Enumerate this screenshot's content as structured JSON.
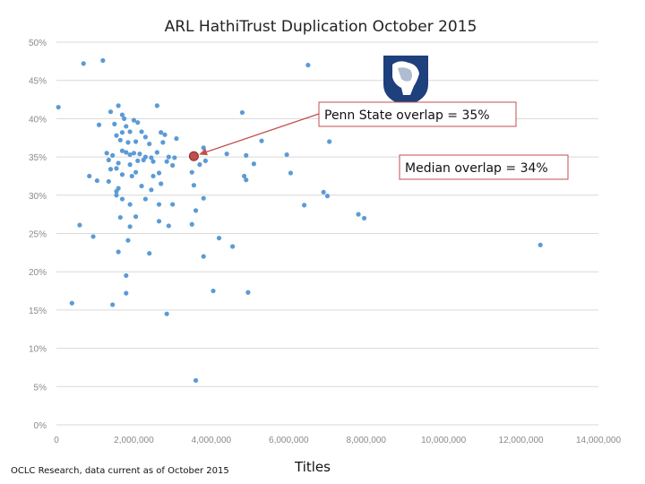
{
  "chart_data": {
    "type": "scatter",
    "title": "ARL HathiTrust Duplication October 2015",
    "xlabel": "Titles",
    "ylabel": "",
    "xlim": [
      0,
      14000000
    ],
    "ylim": [
      0,
      50
    ],
    "xticks": [
      "0",
      "2,000,000",
      "4,000,000",
      "6,000,000",
      "8,000,000",
      "10,000,000",
      "12,000,000",
      "14,000,000"
    ],
    "yticks": [
      "0%",
      "5%",
      "10%",
      "15%",
      "20%",
      "25%",
      "30%",
      "35%",
      "40%",
      "45%",
      "50%"
    ],
    "grid": "horizontal",
    "point_color": "#5b9bd5",
    "highlight_color": "#c0504d",
    "series": [
      {
        "points": [
          [
            50000,
            41.5
          ],
          [
            700000,
            47.2
          ],
          [
            1200000,
            47.6
          ],
          [
            6500000,
            47.0
          ],
          [
            2600000,
            41.7
          ],
          [
            4800000,
            40.8
          ],
          [
            1100000,
            39.2
          ],
          [
            1400000,
            40.9
          ],
          [
            1600000,
            41.7
          ],
          [
            1500000,
            39.3
          ],
          [
            1700000,
            40.5
          ],
          [
            1750000,
            40.0
          ],
          [
            1800000,
            39.0
          ],
          [
            2000000,
            39.8
          ],
          [
            2100000,
            39.5
          ],
          [
            2200000,
            38.3
          ],
          [
            1700000,
            38.2
          ],
          [
            1900000,
            38.3
          ],
          [
            2300000,
            37.6
          ],
          [
            2700000,
            38.2
          ],
          [
            2800000,
            37.9
          ],
          [
            3100000,
            37.4
          ],
          [
            1550000,
            37.8
          ],
          [
            1650000,
            37.2
          ],
          [
            1850000,
            36.9
          ],
          [
            2050000,
            37.0
          ],
          [
            2400000,
            36.7
          ],
          [
            2750000,
            36.9
          ],
          [
            3800000,
            36.2
          ],
          [
            4400000,
            35.4
          ],
          [
            4900000,
            35.2
          ],
          [
            5300000,
            37.1
          ],
          [
            7050000,
            37.0
          ],
          [
            1300000,
            35.5
          ],
          [
            1450000,
            35.2
          ],
          [
            1700000,
            35.8
          ],
          [
            1800000,
            35.6
          ],
          [
            1900000,
            35.3
          ],
          [
            2000000,
            35.5
          ],
          [
            2150000,
            35.4
          ],
          [
            2300000,
            35.0
          ],
          [
            2450000,
            34.9
          ],
          [
            2600000,
            35.6
          ],
          [
            2900000,
            35.0
          ],
          [
            3050000,
            34.9
          ],
          [
            1350000,
            34.6
          ],
          [
            1600000,
            34.2
          ],
          [
            1900000,
            34.0
          ],
          [
            2100000,
            34.5
          ],
          [
            2250000,
            34.6
          ],
          [
            2500000,
            34.4
          ],
          [
            2850000,
            34.4
          ],
          [
            3000000,
            33.9
          ],
          [
            3700000,
            34.0
          ],
          [
            3850000,
            34.5
          ],
          [
            5100000,
            34.1
          ],
          [
            5950000,
            35.3
          ],
          [
            850000,
            32.5
          ],
          [
            1050000,
            31.9
          ],
          [
            1400000,
            33.4
          ],
          [
            1550000,
            33.5
          ],
          [
            1700000,
            32.7
          ],
          [
            1950000,
            32.5
          ],
          [
            2050000,
            33.0
          ],
          [
            2500000,
            32.5
          ],
          [
            2650000,
            32.9
          ],
          [
            3500000,
            33.0
          ],
          [
            4850000,
            32.5
          ],
          [
            4900000,
            32.0
          ],
          [
            6050000,
            32.9
          ],
          [
            1350000,
            31.8
          ],
          [
            1550000,
            30.5
          ],
          [
            1600000,
            30.9
          ],
          [
            2200000,
            31.2
          ],
          [
            2450000,
            30.7
          ],
          [
            2700000,
            31.5
          ],
          [
            3550000,
            31.3
          ],
          [
            1550000,
            30.0
          ],
          [
            1700000,
            29.5
          ],
          [
            1900000,
            28.8
          ],
          [
            2300000,
            29.5
          ],
          [
            2650000,
            28.8
          ],
          [
            3000000,
            28.8
          ],
          [
            3800000,
            29.6
          ],
          [
            6900000,
            30.4
          ],
          [
            7000000,
            29.9
          ],
          [
            3600000,
            28.0
          ],
          [
            6400000,
            28.7
          ],
          [
            1650000,
            27.1
          ],
          [
            2050000,
            27.2
          ],
          [
            2650000,
            26.6
          ],
          [
            2900000,
            26.0
          ],
          [
            3500000,
            26.2
          ],
          [
            600000,
            26.1
          ],
          [
            1900000,
            25.9
          ],
          [
            7800000,
            27.5
          ],
          [
            7950000,
            27.0
          ],
          [
            950000,
            24.6
          ],
          [
            1850000,
            24.1
          ],
          [
            4200000,
            24.4
          ],
          [
            4550000,
            23.3
          ],
          [
            12500000,
            23.5
          ],
          [
            1600000,
            22.6
          ],
          [
            2400000,
            22.4
          ],
          [
            3800000,
            22.0
          ],
          [
            1800000,
            19.5
          ],
          [
            1800000,
            17.2
          ],
          [
            4050000,
            17.5
          ],
          [
            4950000,
            17.3
          ],
          [
            400000,
            15.9
          ],
          [
            1450000,
            15.7
          ],
          [
            2850000,
            14.5
          ],
          [
            3600000,
            5.8
          ]
        ]
      }
    ],
    "highlight": {
      "x": 3550000,
      "y": 35.1
    },
    "annotations": [
      {
        "text": "Penn State overlap = 35%"
      },
      {
        "text": "Median overlap = 34%"
      }
    ]
  },
  "footer": {
    "source": "OCLC Research, data current as of October 2015"
  },
  "logo": {
    "icon": "penn-state-lion-shield-icon",
    "color": "#1e407c"
  }
}
